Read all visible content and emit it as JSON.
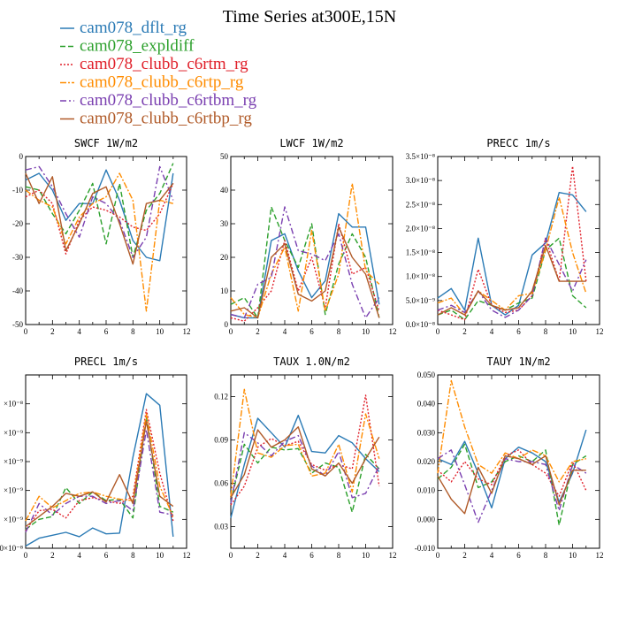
{
  "figure_title": "Time Series at300E,15N",
  "series_meta": [
    {
      "name": "cam078_dflt_rg",
      "color": "#2a7ab5",
      "dash": "none"
    },
    {
      "name": "cam078_expldiff",
      "color": "#2ca02c",
      "dash": "6,3"
    },
    {
      "name": "cam078_clubb_c6rtm_rg",
      "color": "#e0202a",
      "dash": "2,2"
    },
    {
      "name": "cam078_clubb_c6rtp_rg",
      "color": "#ff8c00",
      "dash": "7,2,2,2"
    },
    {
      "name": "cam078_clubb_c6rtbm_rg",
      "color": "#7a3fb0",
      "dash": "7,3,2,3"
    },
    {
      "name": "cam078_clubb_c6rtbp_rg",
      "color": "#b05a28",
      "dash": "none"
    }
  ],
  "chart_data": [
    {
      "type": "line",
      "title": "SWCF   1W/m2",
      "xlim": [
        0,
        12
      ],
      "ylim": [
        -50,
        0
      ],
      "xticks": [
        "0",
        "2",
        "4",
        "6",
        "8",
        "10",
        "12"
      ],
      "yticks": [
        {
          "v": 0,
          "l": "0"
        },
        {
          "v": -10,
          "l": "-10"
        },
        {
          "v": -20,
          "l": "-20"
        },
        {
          "v": -30,
          "l": "-30"
        },
        {
          "v": -40,
          "l": "-40"
        },
        {
          "v": -50,
          "l": "-50"
        }
      ],
      "x": [
        0,
        1,
        2,
        3,
        4,
        5,
        6,
        7,
        8,
        9,
        10,
        11
      ],
      "series": [
        {
          "name": "cam078_dflt_rg",
          "values": [
            -7,
            -5,
            -10,
            -19,
            -14,
            -14,
            -4,
            -13,
            -25,
            -30,
            -31,
            -5
          ]
        },
        {
          "name": "cam078_expldiff",
          "values": [
            -9,
            -10,
            -17,
            -23,
            -16,
            -8,
            -26,
            -8,
            -30,
            -16,
            -11,
            -2
          ]
        },
        {
          "name": "cam078_clubb_c6rtm_rg",
          "values": [
            -12,
            -10,
            -14,
            -29,
            -19,
            -15,
            -16,
            -18,
            -21,
            -22,
            -17,
            -8
          ]
        },
        {
          "name": "cam078_clubb_c6rtp_rg",
          "values": [
            -10,
            -13,
            -15,
            -26,
            -18,
            -14,
            -12,
            -5,
            -13,
            -46,
            -13,
            -14
          ]
        },
        {
          "name": "cam078_clubb_c6rtbm_rg",
          "values": [
            -4,
            -3,
            -9,
            -17,
            -24,
            -12,
            -14,
            -19,
            -30,
            -24,
            -3,
            -13
          ]
        },
        {
          "name": "cam078_clubb_c6rtbp_rg",
          "values": [
            -5,
            -14,
            -6,
            -28,
            -20,
            -11,
            -9,
            -20,
            -32,
            -14,
            -13,
            -8
          ]
        }
      ]
    },
    {
      "type": "line",
      "title": "LWCF   1W/m2",
      "xlim": [
        0,
        12
      ],
      "ylim": [
        0,
        50
      ],
      "xticks": [
        "0",
        "2",
        "4",
        "6",
        "8",
        "10",
        "12"
      ],
      "yticks": [
        {
          "v": 0,
          "l": "0"
        },
        {
          "v": 10,
          "l": "10"
        },
        {
          "v": 20,
          "l": "20"
        },
        {
          "v": 30,
          "l": "30"
        },
        {
          "v": 40,
          "l": "40"
        },
        {
          "v": 50,
          "l": "50"
        }
      ],
      "x": [
        0,
        1,
        2,
        3,
        4,
        5,
        6,
        7,
        8,
        9,
        10,
        11
      ],
      "series": [
        {
          "name": "cam078_dflt_rg",
          "values": [
            3,
            2,
            2,
            25,
            27,
            16,
            8,
            13,
            33,
            29,
            29,
            6
          ]
        },
        {
          "name": "cam078_expldiff",
          "values": [
            6,
            8,
            2,
            35,
            25,
            17,
            30,
            3,
            18,
            27,
            20,
            2
          ]
        },
        {
          "name": "cam078_clubb_c6rtm_rg",
          "values": [
            2,
            1,
            5,
            10,
            25,
            10,
            20,
            5,
            30,
            15,
            17,
            4
          ]
        },
        {
          "name": "cam078_clubb_c6rtp_rg",
          "values": [
            8,
            3,
            2,
            15,
            23,
            4,
            28,
            4,
            15,
            42,
            16,
            12
          ]
        },
        {
          "name": "cam078_clubb_c6rtbm_rg",
          "values": [
            3,
            2,
            12,
            14,
            35,
            22,
            21,
            19,
            27,
            12,
            2,
            8
          ]
        },
        {
          "name": "cam078_clubb_c6rtbp_rg",
          "values": [
            4,
            5,
            2,
            20,
            24,
            9,
            7,
            10,
            29,
            20,
            15,
            2
          ]
        }
      ]
    },
    {
      "type": "line",
      "title": "PRECC   1m/s",
      "xlim": [
        0,
        12
      ],
      "ylim": [
        0,
        3.5e-08
      ],
      "xticks": [
        "0",
        "2",
        "4",
        "6",
        "8",
        "10",
        "12"
      ],
      "yticks": [
        {
          "v": 0,
          "l": "0.0×10⁻⁸"
        },
        {
          "v": 5e-09,
          "l": "5.0×10⁻⁹"
        },
        {
          "v": 1e-08,
          "l": "1.0×10⁻⁸"
        },
        {
          "v": 1.5e-08,
          "l": "1.5×10⁻⁸"
        },
        {
          "v": 2e-08,
          "l": "2.0×10⁻⁸"
        },
        {
          "v": 2.5e-08,
          "l": "2.5×10⁻⁸"
        },
        {
          "v": 3e-08,
          "l": "3.0×10⁻⁸"
        },
        {
          "v": 3.5e-08,
          "l": "3.5×10⁻⁸"
        }
      ],
      "x": [
        0,
        1,
        2,
        3,
        4,
        5,
        6,
        7,
        8,
        9,
        10,
        11
      ],
      "series": [
        {
          "name": "cam078_dflt_rg",
          "values": [
            5.5e-09,
            7.5e-09,
            3e-09,
            1.8e-08,
            4e-09,
            2e-09,
            4e-09,
            1.45e-08,
            1.7e-08,
            2.75e-08,
            2.7e-08,
            2.35e-08
          ]
        },
        {
          "name": "cam078_expldiff",
          "values": [
            2e-09,
            3e-09,
            1e-09,
            5e-09,
            4e-09,
            3e-09,
            4.5e-09,
            5.5e-09,
            1.55e-08,
            1.8e-08,
            6e-09,
            3.5e-09
          ]
        },
        {
          "name": "cam078_clubb_c6rtm_rg",
          "values": [
            3e-09,
            2e-09,
            1e-09,
            1.15e-08,
            4e-09,
            2.5e-09,
            3e-09,
            6e-09,
            1.8e-08,
            9e-09,
            3.3e-08,
            9e-09
          ]
        },
        {
          "name": "cam078_clubb_c6rtp_rg",
          "values": [
            4.5e-09,
            5.5e-09,
            2e-09,
            7e-09,
            5e-09,
            3e-09,
            6e-09,
            6.5e-09,
            1.55e-08,
            2.65e-08,
            1.5e-08,
            6.5e-09
          ]
        },
        {
          "name": "cam078_clubb_c6rtbm_rg",
          "values": [
            3e-09,
            4e-09,
            2.5e-09,
            7e-09,
            3e-09,
            1.5e-09,
            3e-09,
            6e-09,
            1.8e-08,
            1.25e-08,
            7e-09,
            1.35e-08
          ]
        },
        {
          "name": "cam078_clubb_c6rtbp_rg",
          "values": [
            2e-09,
            3.5e-09,
            2e-09,
            7e-09,
            4e-09,
            3e-09,
            3.5e-09,
            7e-09,
            1.65e-08,
            9e-09,
            9e-09,
            9e-09
          ]
        }
      ]
    },
    {
      "type": "line",
      "title": "PRECL   1m/s",
      "xlim": [
        0,
        12
      ],
      "ylim": [
        0,
        1.2e-08
      ],
      "xticks": [
        "0",
        "2",
        "4",
        "6",
        "8",
        "10",
        "12"
      ],
      "yticks": [
        {
          "v": 0,
          "l": "0×10⁻⁸"
        },
        {
          "v": 2e-09,
          "l": "×10⁻⁹"
        },
        {
          "v": 4e-09,
          "l": "×10⁻⁹"
        },
        {
          "v": 6e-09,
          "l": "×10⁻⁹"
        },
        {
          "v": 8e-09,
          "l": "×10⁻⁹"
        },
        {
          "v": 1e-08,
          "l": "×10⁻⁸"
        }
      ],
      "x": [
        0,
        1,
        2,
        3,
        4,
        5,
        6,
        7,
        8,
        9,
        10,
        11
      ],
      "series": [
        {
          "name": "cam078_dflt_rg",
          "values": [
            1.5e-10,
            7e-10,
            9e-10,
            1.1e-09,
            8e-10,
            1.4e-09,
            1e-09,
            1.05e-09,
            6.3e-09,
            1.07e-08,
            9.9e-09,
            8e-10
          ]
        },
        {
          "name": "cam078_expldiff",
          "values": [
            1.3e-09,
            2e-09,
            2.2e-09,
            4.2e-09,
            3.1e-09,
            3.9e-09,
            3.3e-09,
            3.4e-09,
            2.1e-09,
            9.1e-09,
            2.9e-09,
            2.5e-09
          ]
        },
        {
          "name": "cam078_clubb_c6rtm_rg",
          "values": [
            1.2e-09,
            2.6e-09,
            2.7e-09,
            2.1e-09,
            3.3e-09,
            3.5e-09,
            3.3e-09,
            3.1e-09,
            3.6e-09,
            9.6e-09,
            5.2e-09,
            1.9e-09
          ]
        },
        {
          "name": "cam078_clubb_c6rtp_rg",
          "values": [
            1.9e-09,
            3.6e-09,
            2.8e-09,
            3.3e-09,
            3.8e-09,
            3.9e-09,
            3.6e-09,
            3.4e-09,
            3.3e-09,
            9.3e-09,
            4.3e-09,
            2.2e-09
          ]
        },
        {
          "name": "cam078_clubb_c6rtbm_rg",
          "values": [
            1.1e-09,
            3.1e-09,
            2.3e-09,
            3.1e-09,
            3.6e-09,
            3.6e-09,
            3.1e-09,
            3.3e-09,
            2.6e-09,
            8.2e-09,
            2.5e-09,
            2.3e-09
          ]
        },
        {
          "name": "cam078_clubb_c6rtbp_rg",
          "values": [
            1.5e-09,
            2.2e-09,
            2.9e-09,
            3.8e-09,
            3.6e-09,
            3.9e-09,
            3.2e-09,
            5.1e-09,
            3.1e-09,
            8.8e-09,
            3.6e-09,
            2.9e-09
          ]
        }
      ]
    },
    {
      "type": "line",
      "title": "TAUX   1.0N/m2",
      "xlim": [
        0,
        12
      ],
      "ylim": [
        0.015,
        0.135
      ],
      "xticks": [
        "0",
        "2",
        "4",
        "6",
        "8",
        "10",
        "12"
      ],
      "yticks": [
        {
          "v": 0.03,
          "l": "0.03"
        },
        {
          "v": 0.06,
          "l": "0.06"
        },
        {
          "v": 0.09,
          "l": "0.09"
        },
        {
          "v": 0.12,
          "l": "0.12"
        }
      ],
      "x": [
        0,
        1,
        2,
        3,
        4,
        5,
        6,
        7,
        8,
        9,
        10,
        11
      ],
      "series": [
        {
          "name": "cam078_dflt_rg",
          "values": [
            0.036,
            0.073,
            0.105,
            0.095,
            0.085,
            0.107,
            0.082,
            0.081,
            0.093,
            0.088,
            0.077,
            0.068
          ]
        },
        {
          "name": "cam078_expldiff",
          "values": [
            0.047,
            0.087,
            0.074,
            0.085,
            0.083,
            0.084,
            0.067,
            0.074,
            0.071,
            0.04,
            0.08,
            0.07
          ]
        },
        {
          "name": "cam078_clubb_c6rtm_rg",
          "values": [
            0.045,
            0.058,
            0.085,
            0.091,
            0.086,
            0.089,
            0.073,
            0.069,
            0.073,
            0.07,
            0.121,
            0.058
          ]
        },
        {
          "name": "cam078_clubb_c6rtp_rg",
          "values": [
            0.051,
            0.125,
            0.081,
            0.078,
            0.086,
            0.087,
            0.065,
            0.067,
            0.087,
            0.054,
            0.108,
            0.077
          ]
        },
        {
          "name": "cam078_clubb_c6rtbm_rg",
          "values": [
            0.046,
            0.095,
            0.088,
            0.079,
            0.089,
            0.093,
            0.072,
            0.065,
            0.082,
            0.05,
            0.053,
            0.072
          ]
        },
        {
          "name": "cam078_clubb_c6rtbp_rg",
          "values": [
            0.05,
            0.066,
            0.097,
            0.085,
            0.09,
            0.099,
            0.07,
            0.065,
            0.074,
            0.06,
            0.077,
            0.092
          ]
        }
      ]
    },
    {
      "type": "line",
      "title": "TAUY   1N/m2",
      "xlim": [
        0,
        12
      ],
      "ylim": [
        -0.01,
        0.05
      ],
      "xticks": [
        "0",
        "2",
        "4",
        "6",
        "8",
        "10",
        "12"
      ],
      "yticks": [
        {
          "v": -0.01,
          "l": "-0.010"
        },
        {
          "v": 0,
          "l": "0.000"
        },
        {
          "v": 0.01,
          "l": "0.010"
        },
        {
          "v": 0.02,
          "l": "0.020"
        },
        {
          "v": 0.03,
          "l": "0.030"
        },
        {
          "v": 0.04,
          "l": "0.040"
        },
        {
          "v": 0.05,
          "l": "0.050"
        }
      ],
      "x": [
        0,
        1,
        2,
        3,
        4,
        5,
        6,
        7,
        8,
        9,
        10,
        11
      ],
      "series": [
        {
          "name": "cam078_dflt_rg",
          "values": [
            0.021,
            0.019,
            0.027,
            0.016,
            0.004,
            0.021,
            0.025,
            0.023,
            0.02,
            0.006,
            0.016,
            0.031
          ]
        },
        {
          "name": "cam078_expldiff",
          "values": [
            0.014,
            0.018,
            0.026,
            0.011,
            0.013,
            0.02,
            0.022,
            0.02,
            0.024,
            -0.002,
            0.019,
            0.022
          ]
        },
        {
          "name": "cam078_clubb_c6rtm_rg",
          "values": [
            0.017,
            0.013,
            0.02,
            0.014,
            0.012,
            0.022,
            0.024,
            0.019,
            0.016,
            0.008,
            0.02,
            0.01
          ]
        },
        {
          "name": "cam078_clubb_c6rtp_rg",
          "values": [
            0.016,
            0.048,
            0.032,
            0.019,
            0.016,
            0.023,
            0.021,
            0.024,
            0.022,
            0.013,
            0.02,
            0.021
          ]
        },
        {
          "name": "cam078_clubb_c6rtbm_rg",
          "values": [
            0.021,
            0.024,
            0.012,
            -0.001,
            0.01,
            0.021,
            0.02,
            0.02,
            0.019,
            0.003,
            0.019,
            0.016
          ]
        },
        {
          "name": "cam078_clubb_c6rtbp_rg",
          "values": [
            0.015,
            0.007,
            0.002,
            0.018,
            0.009,
            0.022,
            0.021,
            0.019,
            0.022,
            0.005,
            0.017,
            0.017
          ]
        }
      ]
    }
  ]
}
